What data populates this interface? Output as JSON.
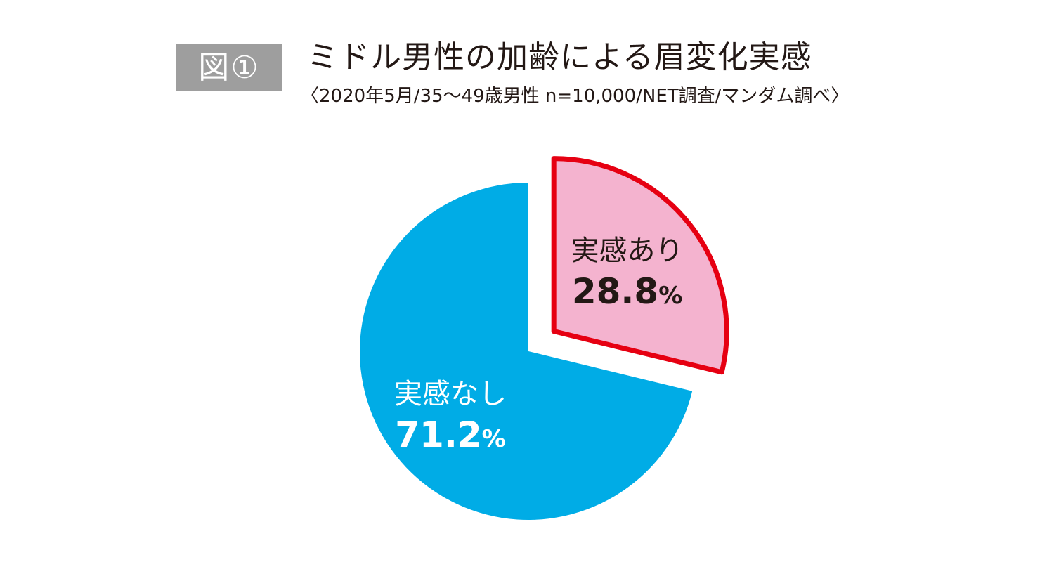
{
  "header": {
    "badge": "図①",
    "title": "ミドル男性の加齢による眉変化実感",
    "subtitle": "〈2020年5月/35〜49歳男性 n=10,000/NET調査/マンダム調べ〉"
  },
  "chart_data": {
    "type": "pie",
    "slices": [
      {
        "label": "実感あり",
        "value": 28.8,
        "value_label": "28.8",
        "unit": "%",
        "color": "#f4b3cf",
        "stroke": "#e60012",
        "exploded": true,
        "text_color": "#231815"
      },
      {
        "label": "実感なし",
        "value": 71.2,
        "value_label": "71.2",
        "unit": "%",
        "color": "#00ace6",
        "stroke": "none",
        "exploded": false,
        "text_color": "#ffffff"
      }
    ]
  }
}
